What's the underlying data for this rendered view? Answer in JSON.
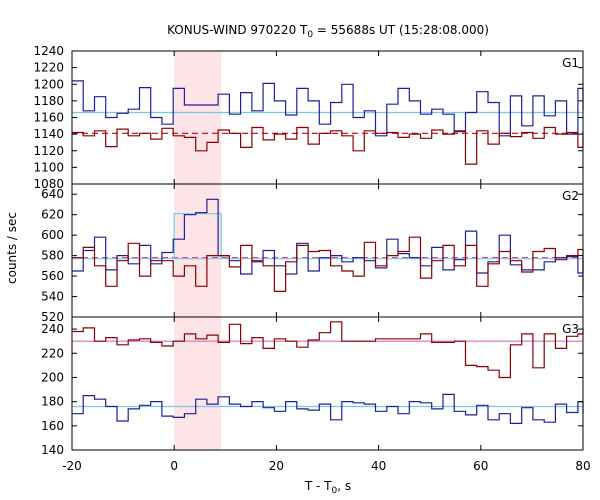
{
  "chart_data": {
    "type": "line",
    "title": "KONUS-WIND 970220 T",
    "title_sub": "0",
    "title_rest": " = 55688s UT (15:28:08.000)",
    "xlabel": "T - T",
    "xlabel_sub": "0",
    "xlabel_rest": ", s",
    "ylabel": "counts / sec",
    "xlim": [
      -20,
      80
    ],
    "xticks": [
      "-20",
      "0",
      "20",
      "40",
      "60",
      "80"
    ],
    "xtick_values": [
      -20,
      0,
      20,
      40,
      60,
      80
    ],
    "shaded_interval": [
      0,
      9.2
    ],
    "shade_color": "#fde4e6",
    "bin_edges": [
      -20,
      -17.8,
      -15.6,
      -13.4,
      -11.2,
      -9,
      -6.8,
      -4.6,
      -2.4,
      -0.2,
      2,
      4.2,
      6.4,
      8.6,
      10.8,
      13,
      15.2,
      17.4,
      19.6,
      21.8,
      24,
      26.2,
      28.4,
      30.6,
      32.8,
      35,
      37.2,
      39.4,
      41.6,
      43.8,
      46,
      48.2,
      50.4,
      52.6,
      54.8,
      57,
      59.2,
      61.4,
      63.6,
      65.8,
      68,
      70.2,
      72.4,
      74.6,
      76.8,
      79,
      80
    ],
    "panels": [
      {
        "label": "G1",
        "ylim": [
          1080,
          1240
        ],
        "yticks": [
          "1080",
          "1100",
          "1120",
          "1140",
          "1160",
          "1180",
          "1200",
          "1220",
          "1240"
        ],
        "ytick_values": [
          1080,
          1100,
          1120,
          1140,
          1160,
          1180,
          1200,
          1220,
          1240
        ],
        "background": [
          {
            "level": 1141,
            "color": "#cc0000",
            "dashed": true
          },
          {
            "level": 1166,
            "color": "#77c8e8",
            "dashed": false
          }
        ],
        "series": [
          {
            "color": "#1f1f9a",
            "values": [
              1204,
              1168,
              1185,
              1160,
              1165,
              1170,
              1196,
              1160,
              1152,
              1195,
              1175,
              1175,
              1175,
              1188,
              1164,
              1190,
              1168,
              1201,
              1180,
              1163,
              1195,
              1180,
              1152,
              1178,
              1200,
              1160,
              1168,
              1138,
              1176,
              1195,
              1180,
              1164,
              1170,
              1164,
              1144,
              1166,
              1191,
              1178,
              1138,
              1186,
              1150,
              1186,
              1162,
              1180,
              1140,
              1195,
              1168
            ]
          },
          {
            "color": "#8b0000",
            "values": [
              1142,
              1138,
              1144,
              1125,
              1146,
              1138,
              1141,
              1134,
              1147,
              1138,
              1136,
              1120,
              1130,
              1145,
              1141,
              1124,
              1148,
              1133,
              1140,
              1134,
              1148,
              1128,
              1141,
              1144,
              1138,
              1120,
              1144,
              1141,
              1142,
              1136,
              1140,
              1135,
              1145,
              1140,
              1143,
              1104,
              1144,
              1128,
              1141,
              1137,
              1142,
              1135,
              1148,
              1140,
              1142,
              1124,
              1143
            ]
          }
        ]
      },
      {
        "label": "G2",
        "ylim": [
          520,
          650
        ],
        "yticks": [
          "520",
          "540",
          "560",
          "580",
          "600",
          "620",
          "640"
        ],
        "ytick_values": [
          520,
          540,
          560,
          580,
          600,
          620,
          640
        ],
        "background": [
          {
            "level": 578,
            "color": "#d05098",
            "dashed": true
          },
          {
            "level": 577,
            "color": "#77c8e8",
            "dashed": false
          },
          {
            "level": 621,
            "from": 0,
            "to": 9.2,
            "color": "#77c8e8",
            "dashed": false
          }
        ],
        "series": [
          {
            "color": "#1f1f9a",
            "values": [
              565,
              585,
              598,
              566,
              580,
              572,
              590,
              572,
              583,
              596,
              620,
              622,
              635,
              580,
              575,
              562,
              575,
              585,
              570,
              562,
              592,
              565,
              578,
              580,
              574,
              578,
              575,
              568,
              596,
              582,
              578,
              570,
              588,
              566,
              576,
              604,
              563,
              574,
              600,
              571,
              566,
              566,
              574,
              578,
              579,
              563,
              575
            ]
          },
          {
            "color": "#8b0000",
            "values": [
              578,
              588,
              570,
              550,
              575,
              592,
              560,
              575,
              575,
              560,
              570,
              550,
              580,
              580,
              569,
              590,
              574,
              570,
              545,
              574,
              590,
              584,
              585,
              570,
              565,
              560,
              593,
              570,
              580,
              584,
              598,
              558,
              575,
              590,
              570,
              590,
              550,
              572,
              584,
              575,
              564,
              584,
              587,
              576,
              580,
              586,
              545
            ]
          }
        ]
      },
      {
        "label": "G3",
        "ylim": [
          140,
          250
        ],
        "yticks": [
          "140",
          "160",
          "180",
          "200",
          "220",
          "240"
        ],
        "ytick_values": [
          140,
          160,
          180,
          200,
          220,
          240
        ],
        "background": [
          {
            "level": 230,
            "color": "#d070c8",
            "dashed": false
          },
          {
            "level": 176,
            "color": "#77c8e8",
            "dashed": false
          }
        ],
        "series": [
          {
            "color": "#1f1f9a",
            "values": [
              170,
              185,
              182,
              176,
              164,
              174,
              177,
              180,
              168,
              167,
              170,
              182,
              178,
              184,
              178,
              176,
              180,
              175,
              172,
              180,
              174,
              173,
              178,
              165,
              180,
              179,
              178,
              172,
              176,
              170,
              180,
              179,
              174,
              186,
              172,
              169,
              177,
              165,
              170,
              162,
              175,
              165,
              163,
              178,
              171,
              180,
              170
            ]
          },
          {
            "color": "#8b0000",
            "values": [
              238,
              241,
              230,
              233,
              227,
              231,
              232,
              229,
              226,
              230,
              236,
              232,
              235,
              229,
              244,
              228,
              233,
              224,
              232,
              230,
              225,
              231,
              237,
              246,
              230,
              230,
              230,
              232,
              232,
              232,
              232,
              236,
              229,
              229,
              230,
              210,
              209,
              206,
              200,
              227,
              236,
              208,
              236,
              224,
              234,
              236,
              241
            ]
          }
        ]
      }
    ]
  }
}
